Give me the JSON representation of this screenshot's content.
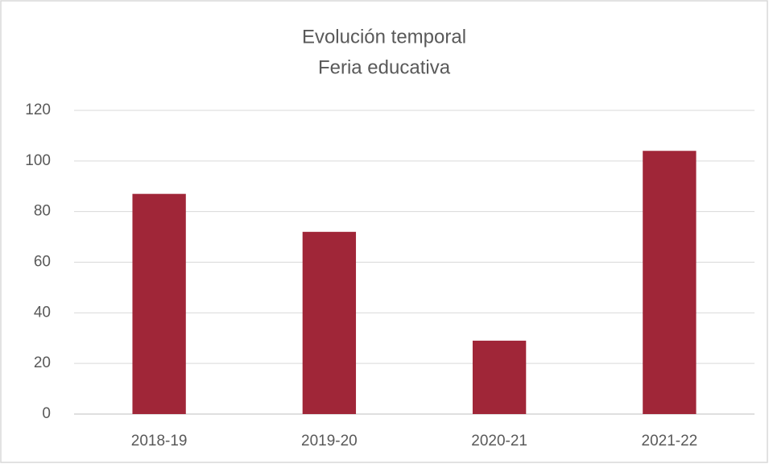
{
  "chart_data": {
    "type": "bar",
    "title": [
      "Evolución temporal",
      "Feria educativa"
    ],
    "categories": [
      "2018-19",
      "2019-20",
      "2020-21",
      "2021-22"
    ],
    "values": [
      87,
      72,
      29,
      104
    ],
    "color": "#a02638",
    "ylim": [
      0,
      120
    ],
    "yticks": [
      0,
      20,
      40,
      60,
      80,
      100,
      120
    ],
    "grid": true
  }
}
